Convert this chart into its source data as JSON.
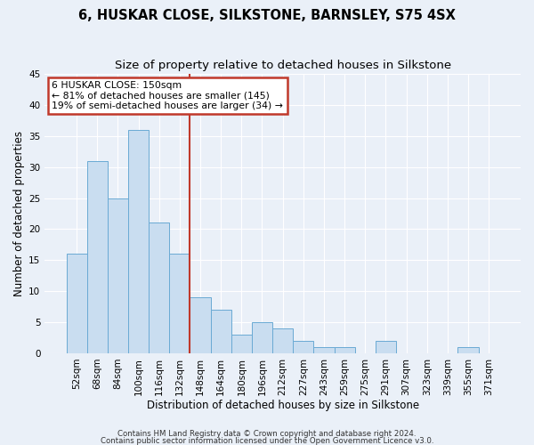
{
  "title1": "6, HUSKAR CLOSE, SILKSTONE, BARNSLEY, S75 4SX",
  "title2": "Size of property relative to detached houses in Silkstone",
  "xlabel": "Distribution of detached houses by size in Silkstone",
  "ylabel": "Number of detached properties",
  "footnote1": "Contains HM Land Registry data © Crown copyright and database right 2024.",
  "footnote2": "Contains public sector information licensed under the Open Government Licence v3.0.",
  "categories": [
    "52sqm",
    "68sqm",
    "84sqm",
    "100sqm",
    "116sqm",
    "132sqm",
    "148sqm",
    "164sqm",
    "180sqm",
    "196sqm",
    "212sqm",
    "227sqm",
    "243sqm",
    "259sqm",
    "275sqm",
    "291sqm",
    "307sqm",
    "323sqm",
    "339sqm",
    "355sqm",
    "371sqm"
  ],
  "values": [
    16,
    31,
    25,
    36,
    21,
    16,
    9,
    7,
    3,
    5,
    4,
    2,
    1,
    1,
    0,
    2,
    0,
    0,
    0,
    1,
    0
  ],
  "bar_color": "#c9ddf0",
  "bar_edge_color": "#6aaad4",
  "bar_edge_width": 0.7,
  "vline_color": "#c0392b",
  "vline_index": 6,
  "annotation_line1": "6 HUSKAR CLOSE: 150sqm",
  "annotation_line2": "← 81% of detached houses are smaller (145)",
  "annotation_line3": "19% of semi-detached houses are larger (34) →",
  "annotation_box_color": "#c0392b",
  "ylim": [
    0,
    45
  ],
  "yticks": [
    0,
    5,
    10,
    15,
    20,
    25,
    30,
    35,
    40,
    45
  ],
  "background_color": "#eaf0f8",
  "grid_color": "#ffffff",
  "title1_fontsize": 10.5,
  "title2_fontsize": 9.5,
  "xlabel_fontsize": 8.5,
  "ylabel_fontsize": 8.5,
  "tick_fontsize": 7.5,
  "annot_fontsize": 7.8,
  "footnote_fontsize": 6.2
}
